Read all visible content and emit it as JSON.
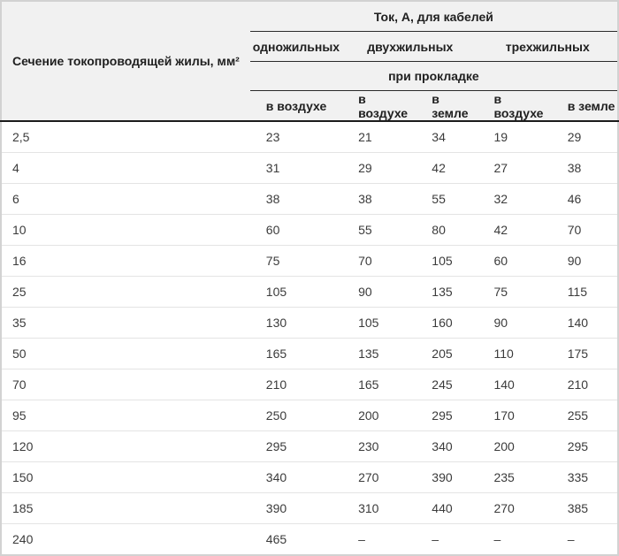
{
  "table": {
    "col1_header": "Сечение токопроводящей жилы, мм²",
    "top_header": "Ток, А, для кабелей",
    "group_headers": [
      "одножильных",
      "двухжильных",
      "трехжильных"
    ],
    "mid_header": "при прокладке",
    "sub_headers": [
      "в воздухе",
      "в воздухе",
      "в земле",
      "в воздухе",
      "в земле"
    ],
    "rows": [
      [
        "2,5",
        "23",
        "21",
        "34",
        "19",
        "29"
      ],
      [
        "4",
        "31",
        "29",
        "42",
        "27",
        "38"
      ],
      [
        "6",
        "38",
        "38",
        "55",
        "32",
        "46"
      ],
      [
        "10",
        "60",
        "55",
        "80",
        "42",
        "70"
      ],
      [
        "16",
        "75",
        "70",
        "105",
        "60",
        "90"
      ],
      [
        "25",
        "105",
        "90",
        "135",
        "75",
        "115"
      ],
      [
        "35",
        "130",
        "105",
        "160",
        "90",
        "140"
      ],
      [
        "50",
        "165",
        "135",
        "205",
        "110",
        "175"
      ],
      [
        "70",
        "210",
        "165",
        "245",
        "140",
        "210"
      ],
      [
        "95",
        "250",
        "200",
        "295",
        "170",
        "255"
      ],
      [
        "120",
        "295",
        "230",
        "340",
        "200",
        "295"
      ],
      [
        "150",
        "340",
        "270",
        "390",
        "235",
        "335"
      ],
      [
        "185",
        "390",
        "310",
        "440",
        "270",
        "385"
      ],
      [
        "240",
        "465",
        "–",
        "–",
        "–",
        "–"
      ]
    ]
  },
  "colors": {
    "header_bg": "#f1f1f1",
    "outer_border": "#d2d2d2",
    "header_rule": "#2a2a2a",
    "header_bottom_rule": "#1c1c1c",
    "row_separator": "#e4e4e4",
    "header_text": "#1f1f1f",
    "body_text": "#3b3b3b"
  }
}
